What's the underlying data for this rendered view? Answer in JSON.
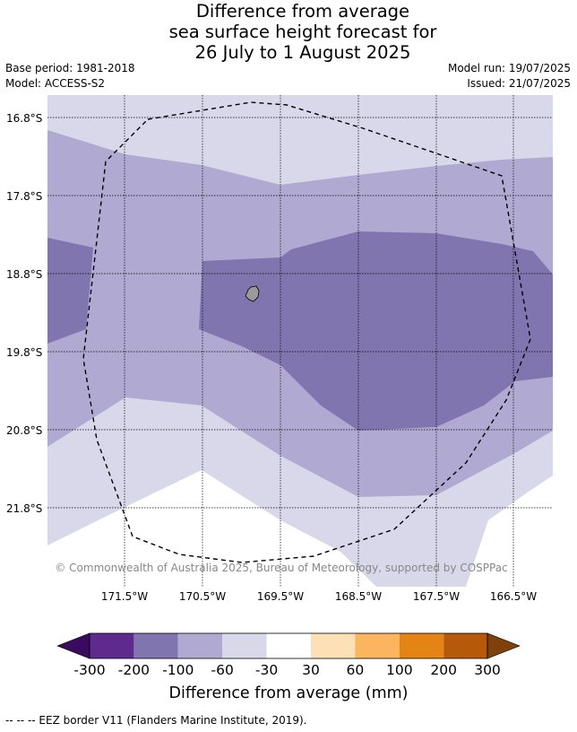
{
  "title": {
    "line1": "Difference from average",
    "line2": "sea surface height forecast for",
    "line3": "26 July to 1 August 2025"
  },
  "meta": {
    "base_period": "Base period: 1981-2018",
    "model": "Model: ACCESS-S2",
    "model_run": "Model run: 19/07/2025",
    "issued": "Issued: 21/07/2025"
  },
  "map": {
    "lat_labels": [
      "16.8°S",
      "17.8°S",
      "18.8°S",
      "19.8°S",
      "20.8°S",
      "21.8°S"
    ],
    "lon_labels": [
      "171.5°W",
      "170.5°W",
      "169.5°W",
      "168.5°W",
      "167.5°W",
      "166.5°W"
    ],
    "copyright": "© Commonwealth of Australia 2025, Bureau of Meteorology, supported by COSPPac",
    "colors": {
      "very_light": "#d8d8ea",
      "light": "#b0a9d2",
      "medium": "#8075ae",
      "land": "#9a9a9a"
    }
  },
  "colorbar": {
    "ticks": [
      "-300",
      "-200",
      "-100",
      "-60",
      "-30",
      "30",
      "60",
      "100",
      "200",
      "300"
    ],
    "label": "Difference from average (mm)",
    "colors": [
      "#3a0a5e",
      "#5e2a8e",
      "#8075ae",
      "#b0a9d2",
      "#d8d8ea",
      "#ffffff",
      "#fde0b6",
      "#fbb55e",
      "#e38414",
      "#b65908",
      "#80400a"
    ]
  },
  "footer": "--  --  -- EEZ border V11 (Flanders Marine Institute, 2019)."
}
